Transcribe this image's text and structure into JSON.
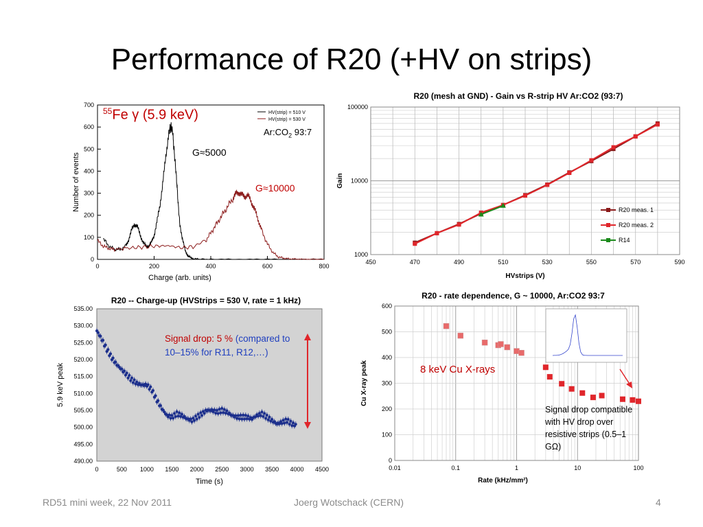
{
  "slide": {
    "title": "Performance of R20 (+HV on strips)",
    "footer_left": "RD51 mini week, 22 Nov 2011",
    "footer_center": "Joerg Wotschack (CERN)",
    "footer_right": "4"
  },
  "colors": {
    "black": "#000000",
    "dark_red": "#8b1a1a",
    "red": "#e0262b",
    "green": "#1a8a1a",
    "navy": "#1c2f8c",
    "text_red": "#c00000",
    "text_blue": "#1f3fbf",
    "gray_bg": "#d3d3d3"
  },
  "annotations": {
    "fe_label": "Fe γ (5.9 keV)",
    "fe_superscript": "55",
    "gain_5000": "G≈5000",
    "gain_10000": "G≈10000",
    "gas": "Ar:CO",
    "gas_sub": "2",
    "gas_ratio": " 93:7",
    "signal_drop_red": "Signal drop: 5 %",
    "signal_drop_blue": "(compared to 10–15% for R11, R12,…)",
    "cu_xrays": "8 keV Cu X-rays",
    "rate_note": "Signal drop compatible with HV drop over resistive strips (0.5–1 GΩ)"
  },
  "chart_data": [
    {
      "type": "line",
      "xlabel": "Charge (arb. units)",
      "ylabel": "Number of events",
      "xlim": [
        0,
        800
      ],
      "ylim": [
        0,
        700
      ],
      "xticks": [
        "0",
        "200",
        "400",
        "600",
        "800"
      ],
      "yticks": [
        "0",
        "100",
        "200",
        "300",
        "400",
        "500",
        "600",
        "700"
      ],
      "legend": [
        "HV(strip) = 510 V",
        "HV(strip) = 530 V"
      ],
      "legend_position": "top-right",
      "series": [
        {
          "name": "HV(strip) = 510 V",
          "x": [
            20,
            40,
            60,
            80,
            100,
            110,
            120,
            130,
            140,
            150,
            160,
            170,
            180,
            190,
            200,
            210,
            220,
            230,
            240,
            250,
            255,
            260,
            265,
            270,
            275,
            280,
            285,
            290,
            300,
            310,
            320,
            330,
            340,
            360,
            400,
            500,
            600,
            700,
            800
          ],
          "y": [
            95,
            60,
            45,
            45,
            60,
            90,
            130,
            160,
            150,
            115,
            80,
            60,
            60,
            75,
            110,
            170,
            240,
            340,
            450,
            560,
            590,
            600,
            585,
            500,
            430,
            350,
            250,
            170,
            90,
            40,
            15,
            6,
            3,
            1,
            0,
            0,
            0,
            0,
            0
          ]
        },
        {
          "name": "HV(strip) = 530 V",
          "x": [
            0,
            20,
            40,
            60,
            100,
            150,
            200,
            250,
            300,
            350,
            380,
            400,
            420,
            440,
            460,
            480,
            490,
            500,
            510,
            520,
            530,
            540,
            550,
            560,
            570,
            580,
            600,
            620,
            640,
            660,
            680,
            700,
            720,
            760,
            800
          ],
          "y": [
            85,
            60,
            50,
            45,
            50,
            55,
            60,
            62,
            52,
            60,
            80,
            120,
            160,
            200,
            240,
            280,
            300,
            305,
            292,
            285,
            290,
            270,
            240,
            210,
            170,
            130,
            70,
            30,
            10,
            5,
            2,
            1,
            0,
            0,
            0
          ]
        }
      ]
    },
    {
      "type": "line",
      "title": "R20 (mesh at GND) - Gain vs R-strip HV Ar:CO2 (93:7)",
      "xlabel": "HVstrips (V)",
      "ylabel": "Gain",
      "xlim": [
        450,
        590
      ],
      "ylim": [
        1000,
        100000
      ],
      "y_scale": "log",
      "xticks": [
        "450",
        "470",
        "490",
        "510",
        "530",
        "550",
        "570",
        "590"
      ],
      "yticks": [
        "1000",
        "10000",
        "100000"
      ],
      "grid": true,
      "legend_position": "right",
      "series": [
        {
          "name": "R20 meas. 1",
          "x": [
            470,
            480,
            490,
            500,
            510,
            520,
            530,
            540,
            550,
            560,
            570,
            580
          ],
          "y": [
            1450,
            1950,
            2600,
            3600,
            4700,
            6400,
            8900,
            13000,
            18500,
            27000,
            40000,
            60000
          ]
        },
        {
          "name": "R20 meas. 2",
          "x": [
            470,
            480,
            490,
            500,
            510,
            520,
            530,
            540,
            550,
            560,
            570,
            580
          ],
          "y": [
            1400,
            1950,
            2550,
            3700,
            4700,
            6300,
            8800,
            12800,
            19000,
            28500,
            40000,
            58000
          ]
        },
        {
          "name": "R14",
          "x": [
            500,
            510
          ],
          "y": [
            3500,
            4600
          ]
        }
      ]
    },
    {
      "type": "scatter",
      "title": "R20 -- Charge-up (HVStrips = 530 V, rate = 1 kHz)",
      "xlabel": "Time (s)",
      "ylabel": "5.9 keV peak",
      "xlim": [
        0,
        4500
      ],
      "ylim": [
        490,
        535
      ],
      "xticks": [
        "0",
        "500",
        "1000",
        "1500",
        "2000",
        "2500",
        "3000",
        "3500",
        "4000",
        "4500"
      ],
      "yticks": [
        "490.00",
        "495.00",
        "500.00",
        "505.00",
        "510.00",
        "515.00",
        "520.00",
        "525.00",
        "530.00",
        "535.00"
      ],
      "series": [
        {
          "name": "",
          "x": [
            0,
            100,
            200,
            300,
            400,
            500,
            600,
            700,
            800,
            900,
            1000,
            1100,
            1200,
            1300,
            1400,
            1500,
            1600,
            1700,
            1800,
            1900,
            2000,
            2100,
            2200,
            2300,
            2400,
            2500,
            2600,
            2700,
            2800,
            2900,
            3000,
            3100,
            3200,
            3300,
            3400,
            3500,
            3600,
            3700,
            3800,
            3900,
            4000
          ],
          "y": [
            528.5,
            526,
            523,
            520.5,
            518.5,
            517,
            515.5,
            514,
            513,
            512.5,
            512.5,
            511,
            508,
            505.5,
            503.5,
            503,
            504,
            503.5,
            502.5,
            502,
            503,
            504,
            505,
            505,
            504.5,
            505,
            504.5,
            503.5,
            503,
            503,
            503,
            502.5,
            503.5,
            504,
            503,
            502,
            501,
            501.5,
            502,
            501,
            500.5
          ]
        }
      ]
    },
    {
      "type": "scatter",
      "title": "R20 - rate dependence, G ~ 10000, Ar:CO2 93:7",
      "xlabel": "Rate (kHz/mm²)",
      "ylabel": "Cu X-ray peak",
      "x_scale": "log",
      "xlim": [
        0.01,
        100
      ],
      "ylim": [
        0,
        600
      ],
      "xticks": [
        "0.01",
        "0.1",
        "1",
        "10",
        "100"
      ],
      "yticks": [
        "0",
        "100",
        "200",
        "300",
        "400",
        "500",
        "600"
      ],
      "grid": true,
      "series": [
        {
          "name": "",
          "x": [
            0.07,
            0.12,
            0.3,
            0.5,
            0.55,
            0.7,
            1.0,
            1.2,
            3,
            3.5,
            5.5,
            8,
            12,
            18,
            25,
            55,
            80,
            100
          ],
          "y": [
            522,
            485,
            458,
            448,
            452,
            440,
            425,
            418,
            362,
            325,
            298,
            278,
            262,
            245,
            252,
            238,
            235,
            230
          ]
        }
      ]
    }
  ]
}
